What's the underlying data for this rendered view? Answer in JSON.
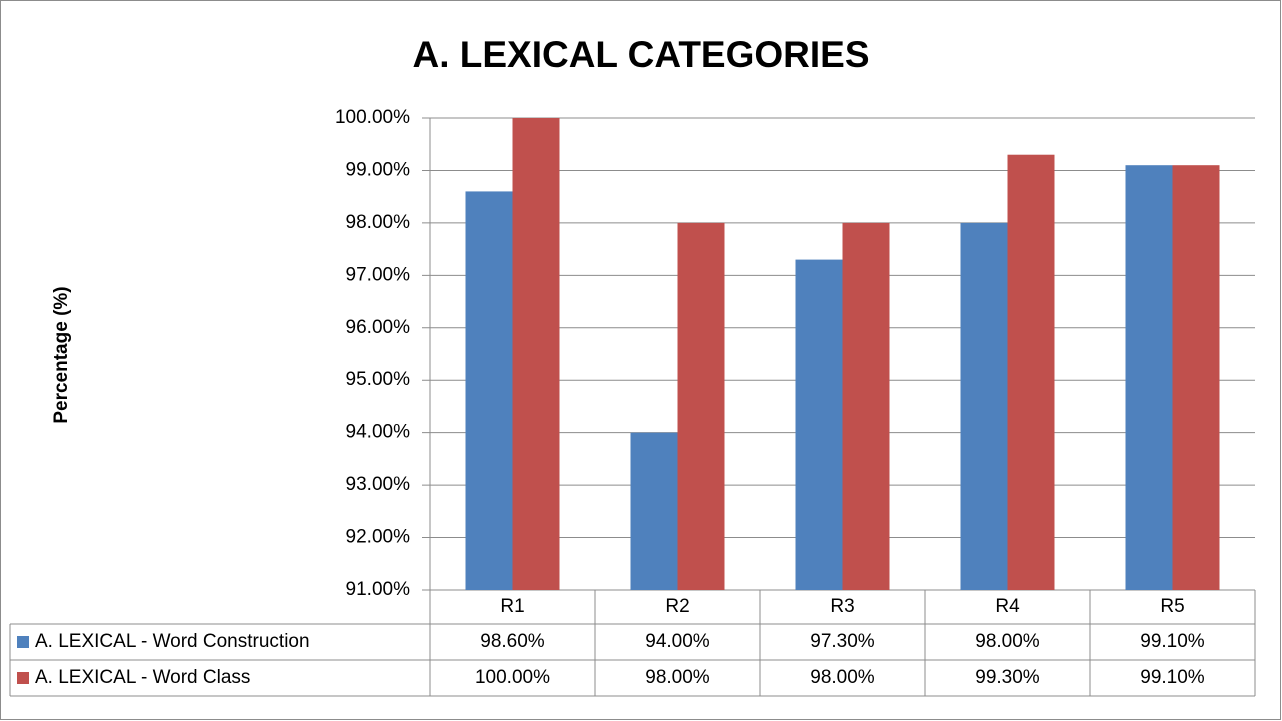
{
  "chart_data": {
    "type": "bar",
    "title": "A. LEXICAL CATEGORIES",
    "y_label": "Percentage (%)",
    "categories": [
      "R1",
      "R2",
      "R3",
      "R4",
      "R5"
    ],
    "series": [
      {
        "name": "A. LEXICAL - Word Construction",
        "color": "#4f81bd",
        "values": [
          98.6,
          94.0,
          97.3,
          98.0,
          99.1
        ],
        "value_labels": [
          "98.60%",
          "94.00%",
          "97.30%",
          "98.00%",
          "99.10%"
        ]
      },
      {
        "name": "A. LEXICAL - Word Class",
        "color": "#c0504d",
        "values": [
          100.0,
          98.0,
          98.0,
          99.3,
          99.1
        ],
        "value_labels": [
          "100.00%",
          "98.00%",
          "98.00%",
          "99.30%",
          "99.10%"
        ]
      }
    ],
    "ylim": [
      91,
      100
    ],
    "yticks": [
      {
        "value": 91,
        "label": "91.00%"
      },
      {
        "value": 92,
        "label": "92.00%"
      },
      {
        "value": 93,
        "label": "93.00%"
      },
      {
        "value": 94,
        "label": "94.00%"
      },
      {
        "value": 95,
        "label": "95.00%"
      },
      {
        "value": 96,
        "label": "96.00%"
      },
      {
        "value": 97,
        "label": "97.00%"
      },
      {
        "value": 98,
        "label": "98.00%"
      },
      {
        "value": 99,
        "label": "99.00%"
      },
      {
        "value": 100,
        "label": "100.00%"
      }
    ],
    "grid": true,
    "legend": "data-table"
  }
}
